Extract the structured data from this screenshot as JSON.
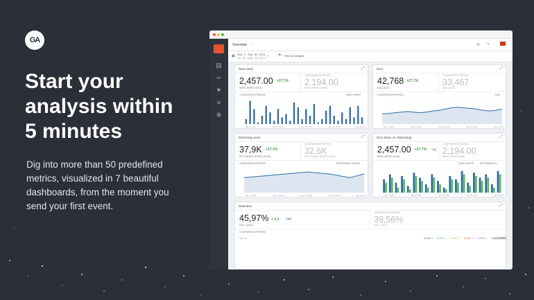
{
  "headline": [
    "Start your",
    "analysis within",
    "5 minutes"
  ],
  "subtext": [
    "Dig into more than 50 predefined",
    "metrics, visualized in 7 beautiful",
    "dashboards, from the moment you",
    "send your first event."
  ],
  "logo_text": "GA",
  "colors": {
    "background": "#2a2f38",
    "accent": "#e8542e",
    "chart_blue": "#2d6aa8",
    "chart_green": "#5cb85c",
    "delta_green": "#3a9d3a"
  },
  "app": {
    "section": "Overview",
    "date_range": "Sep. 1 - Sep. 30, 2015",
    "date_compare": "Jul. 28 - Aug. 29, 2015",
    "filter_label": "Filter all widgets"
  },
  "cards": {
    "new_users": {
      "title": "New users",
      "value": "2,457.00",
      "delta": "+27.7%",
      "label": "NEW USERS (SUM)",
      "comparison_title": "COMPARISON PERIOD",
      "comparison_value": "2,194.00",
      "comparison_label": "NEW USERS (SUM)",
      "legend_left": "COMPARISON PERIOD",
      "legend_right": "NEW USERS",
      "xticks": [
        "Sep. 1, 2015",
        "Sep. 8, 2015",
        "Sep. 15, 2015",
        "Sep. 22, 2015",
        "Sep. 29, 2015"
      ]
    },
    "dau": {
      "title": "DAU",
      "value": "42,768",
      "delta": "+27.7%",
      "label": "DAU (AVG)",
      "comparison_title": "COMPARISON PERIOD",
      "comparison_value": "33,467",
      "comparison_label": "DAU (AVG)",
      "legend_left": "COMPARISON PERIOD",
      "legend_right": "DAU",
      "xticks": [
        "Sep. 1, 2015",
        "Sep. 8, 2015",
        "Sep. 15, 2015",
        "Sep. 22, 2015",
        "Sep. 29, 2015"
      ]
    },
    "returning_users": {
      "title": "Returning users",
      "value": "37,9K",
      "delta": "+27.7%",
      "label": "RETURNING USERS (SUM)",
      "comparison_title": "COMPARISON PERIOD",
      "comparison_value": "32,6K",
      "comparison_label": "RETURNING USERS (SUM)",
      "legend_left": "COMPARISON PERIOD",
      "legend_right": "RETURNING USERS",
      "xticks": [
        "Sep. 1, 2015",
        "Sep. 8, 2015",
        "Sep. 15, 2015",
        "Sep. 22, 2015",
        "Sep. 29, 2015"
      ]
    },
    "dau_new_returning": {
      "title": "DAU (New vs. Returning)",
      "value": "2,457.00",
      "delta": "+27.7%",
      "badge": "+1",
      "label": "NEW USERS (SUM)",
      "comparison_title": "COMPARISON PERIOD",
      "comparison_value": "2,194.00",
      "comparison_label": "NEW USERS (SUM)",
      "legend_left": "NEW USERS",
      "legend_right": "RETURNING U...",
      "xticks": [
        "Sep. 1, 2015",
        "Sep. 8, 2015",
        "Sep. 15, 2015",
        "Sep. 22, 2015",
        "Sep. 29, 2015"
      ]
    },
    "retention": {
      "title": "Retention",
      "value": "45,97%",
      "delta": "+ 3.3",
      "badge": "+18",
      "label": "DAY 1 (AVG)",
      "comparison_title": "COMPARISON PERIOD",
      "comparison_value": "39,56%",
      "comparison_label": "DAY 1 (AVG)",
      "legend_left": "COMPARISON PERIOD",
      "yaxis_label": "VALUE",
      "legend_items": [
        "DAY 1",
        "DAY 2",
        "DAY 3",
        "DAY 4",
        "DAY 5"
      ],
      "others_label": "+ 5 OTHERS"
    }
  },
  "chart_data": [
    {
      "type": "bar",
      "title": "New users",
      "series": [
        {
          "values": [
            3,
            14,
            9,
            1,
            5,
            11,
            7,
            2,
            9,
            4,
            6,
            2,
            13,
            10,
            3,
            9,
            5,
            12,
            1,
            3,
            8,
            11,
            5,
            2,
            7,
            3,
            10,
            4,
            11,
            4
          ]
        }
      ],
      "ylim": [
        0,
        15
      ]
    },
    {
      "type": "area",
      "title": "DAU",
      "series": [
        {
          "values": [
            8,
            8.5,
            9,
            9.5,
            10,
            9.5,
            9,
            9.5,
            10.5,
            11,
            12,
            13,
            13.5,
            13,
            12.5,
            12,
            11,
            10.5,
            11,
            12
          ]
        }
      ],
      "ylim": [
        0,
        20
      ]
    },
    {
      "type": "area",
      "title": "Returning users",
      "series": [
        {
          "values": [
            12,
            12.5,
            13,
            13.5,
            14,
            14.5,
            15,
            15.5,
            16,
            16.5,
            16,
            15.5,
            15,
            14,
            13,
            12,
            13.5,
            15
          ]
        }
      ],
      "ylim": [
        0,
        20
      ]
    },
    {
      "type": "bar",
      "title": "DAU (New vs. Returning)",
      "series": [
        {
          "name": "NEW USERS",
          "values": [
            8,
            11,
            6,
            10,
            4,
            12,
            9,
            5,
            11,
            7,
            3,
            10,
            8,
            13,
            6,
            12,
            9,
            11,
            5,
            13
          ]
        },
        {
          "name": "RETURNING U...",
          "values": [
            6,
            9,
            3,
            8,
            2,
            10,
            7,
            3,
            9,
            5,
            2,
            8,
            6,
            11,
            4,
            10,
            7,
            9,
            3,
            11
          ]
        }
      ],
      "ylim": [
        0,
        15
      ]
    }
  ]
}
